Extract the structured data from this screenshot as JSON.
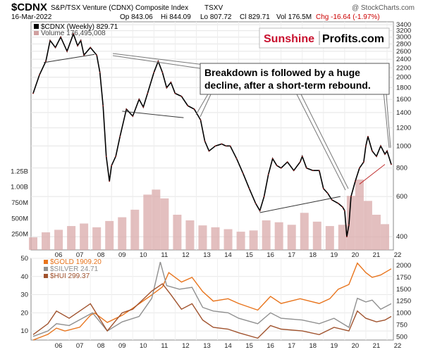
{
  "header": {
    "symbol": "$CDNX",
    "name": "S&P/TSX Venture (CDNX) Composite Index",
    "exchange": "TSXV",
    "watermark": "@ StockCharts.com",
    "date": "16-Mar-2022",
    "op": "Op 843.06",
    "hi": "Hi 844.09",
    "lo": "Lo 807.72",
    "cl": "Cl 829.71",
    "vol": "Vol 176.5M",
    "chg": "Chg -16.64 (-1.97%)",
    "chg_color": "#cc0000"
  },
  "brand": {
    "part1": "Sunshine",
    "part2": "Profits.com",
    "color1": "#c8102e"
  },
  "annotation": {
    "line1": "Breakdown is followed by a huge",
    "line2": "decline, after a short-term rebound."
  },
  "chart_data": [
    {
      "type": "line",
      "title": "$CDNX (Weekly) 829.71",
      "series": [
        {
          "name": "$CDNX (Weekly) 829.71",
          "color": "#000000",
          "x": [
            2005.3,
            2005.6,
            2005.9,
            2006.1,
            2006.35,
            2006.6,
            2006.9,
            2007.2,
            2007.4,
            2007.55,
            2007.7,
            2008.0,
            2008.3,
            2008.45,
            2008.6,
            2008.75,
            2008.9,
            2009.0,
            2009.2,
            2009.4,
            2009.7,
            2010.0,
            2010.3,
            2010.5,
            2010.7,
            2011.0,
            2011.2,
            2011.4,
            2011.6,
            2011.8,
            2012.0,
            2012.3,
            2012.6,
            2012.9,
            2013.2,
            2013.4,
            2013.6,
            2013.9,
            2014.2,
            2014.4,
            2014.6,
            2014.9,
            2015.2,
            2015.5,
            2015.8,
            2016.0,
            2016.2,
            2016.4,
            2016.6,
            2016.8,
            2017.0,
            2017.3,
            2017.6,
            2017.9,
            2018.0,
            2018.2,
            2018.5,
            2018.8,
            2019.0,
            2019.2,
            2019.4,
            2019.7,
            2019.9,
            2020.0,
            2020.1,
            2020.2,
            2020.3,
            2020.5,
            2020.7,
            2020.9,
            2021.0,
            2021.1,
            2021.3,
            2021.5,
            2021.7,
            2021.9,
            2022.0,
            2022.2
          ],
          "values": [
            1700,
            2050,
            2350,
            2900,
            2700,
            3000,
            2600,
            3100,
            2750,
            2900,
            2500,
            2700,
            2500,
            2100,
            1500,
            900,
            700,
            820,
            900,
            1100,
            1450,
            1350,
            1600,
            1480,
            1700,
            2100,
            2350,
            2100,
            1800,
            1900,
            1700,
            1650,
            1500,
            1450,
            1300,
            1050,
            950,
            1000,
            1020,
            1000,
            1000,
            880,
            760,
            650,
            560,
            520,
            600,
            750,
            880,
            820,
            800,
            850,
            780,
            850,
            900,
            800,
            780,
            780,
            650,
            620,
            580,
            560,
            540,
            520,
            400,
            450,
            600,
            700,
            800,
            850,
            1000,
            1100,
            950,
            900,
            1000,
            920,
            950,
            830
          ]
        }
      ],
      "ylim": [
        350,
        3500
      ],
      "yticks": [
        400,
        600,
        800,
        1000,
        1200,
        1400,
        1600,
        1800,
        2000,
        2200,
        2400,
        2600,
        2800,
        3000,
        3200,
        3400
      ],
      "xticks": [
        "06",
        "07",
        "08",
        "09",
        "10",
        "11",
        "12",
        "13",
        "14",
        "15",
        "16",
        "17",
        "18",
        "19",
        "20",
        "21",
        "22"
      ],
      "trendlines": [
        {
          "x1": 2005.8,
          "y1": 2320,
          "x2": 2008.2,
          "y2": 2520
        },
        {
          "x1": 2009.5,
          "y1": 1420,
          "x2": 2012.4,
          "y2": 1330
        },
        {
          "x1": 2016.0,
          "y1": 510,
          "x2": 2019.8,
          "y2": 600
        },
        {
          "x1": 2020.7,
          "y1": 680,
          "x2": 2021.9,
          "y2": 830
        }
      ]
    },
    {
      "type": "bar",
      "title": "Volume 176,495,008",
      "series": [
        {
          "name": "Volume 176,495,008",
          "x": [
            2005.3,
            2005.9,
            2006.5,
            2007.1,
            2007.7,
            2008.3,
            2008.9,
            2009.5,
            2010.1,
            2010.7,
            2011.1,
            2011.5,
            2012.1,
            2012.7,
            2013.3,
            2013.9,
            2014.5,
            2015.1,
            2015.7,
            2016.3,
            2016.9,
            2017.5,
            2018.1,
            2018.7,
            2019.3,
            2019.9,
            2020.3,
            2020.7,
            2021.1,
            2021.5,
            2021.9
          ],
          "values": [
            200,
            280,
            320,
            380,
            420,
            360,
            460,
            520,
            640,
            880,
            960,
            820,
            560,
            470,
            390,
            360,
            330,
            290,
            310,
            470,
            440,
            400,
            590,
            450,
            380,
            400,
            860,
            1120,
            780,
            560,
            410
          ]
        }
      ],
      "ylim": [
        0,
        1400
      ],
      "yticks": [
        250,
        500,
        750,
        1000,
        1250
      ],
      "ytick_labels": [
        "250M",
        "500M",
        "750M",
        "1.00B",
        "1.25B"
      ]
    },
    {
      "type": "line",
      "series": [
        {
          "name": "$GOLD 1909.20",
          "color": "#e8741c",
          "axis": "right",
          "x": [
            2005.3,
            2006.0,
            2006.4,
            2006.8,
            2007.5,
            2008.0,
            2008.2,
            2008.8,
            2009.5,
            2010.0,
            2010.8,
            2011.4,
            2011.7,
            2012.3,
            2012.8,
            2013.3,
            2013.8,
            2014.5,
            2015.0,
            2015.9,
            2016.5,
            2017.0,
            2017.9,
            2018.8,
            2019.3,
            2019.7,
            2020.2,
            2020.6,
            2021.0,
            2021.3,
            2021.7,
            2022.2
          ],
          "values": [
            430,
            550,
            680,
            620,
            700,
            950,
            1000,
            800,
            950,
            1100,
            1350,
            1550,
            1850,
            1650,
            1750,
            1450,
            1250,
            1300,
            1200,
            1060,
            1350,
            1200,
            1300,
            1200,
            1300,
            1500,
            1600,
            2050,
            1850,
            1750,
            1800,
            1930
          ]
        },
        {
          "name": "$SILVER 24.71",
          "color": "#909090",
          "axis": "left",
          "x": [
            2005.3,
            2006.0,
            2006.4,
            2007.0,
            2008.1,
            2008.8,
            2009.5,
            2010.3,
            2010.9,
            2011.3,
            2011.6,
            2012.2,
            2012.8,
            2013.3,
            2013.8,
            2014.5,
            2015.0,
            2015.9,
            2016.5,
            2017.0,
            2018.0,
            2018.8,
            2019.5,
            2020.2,
            2020.6,
            2021.0,
            2021.3,
            2021.7,
            2022.2
          ],
          "values": [
            7,
            10,
            14,
            13,
            20,
            10,
            15,
            18,
            28,
            48,
            35,
            33,
            34,
            23,
            21,
            20,
            17,
            14,
            20,
            17,
            16,
            14,
            17,
            12,
            28,
            26,
            27,
            22,
            25
          ]
        },
        {
          "name": "$HUI 299.37",
          "color": "#a0522d",
          "axis": "left",
          "x": [
            2005.3,
            2006.0,
            2006.4,
            2007.0,
            2008.0,
            2008.8,
            2009.5,
            2010.0,
            2010.9,
            2011.4,
            2011.8,
            2012.3,
            2012.8,
            2013.3,
            2013.8,
            2014.5,
            2015.0,
            2015.9,
            2016.5,
            2017.0,
            2018.0,
            2018.8,
            2019.5,
            2020.2,
            2020.6,
            2021.0,
            2021.5,
            2021.9,
            2022.2
          ],
          "values": [
            8,
            14,
            21,
            17,
            25,
            10,
            20,
            22,
            32,
            36,
            30,
            22,
            25,
            16,
            12,
            11,
            9,
            6,
            13,
            11,
            10,
            8,
            12,
            10,
            21,
            17,
            15,
            16,
            18
          ]
        }
      ],
      "ylim_left": [
        5,
        50
      ],
      "yticks_left": [
        10,
        20,
        30,
        40,
        50
      ],
      "ylim_right": [
        430,
        2150
      ],
      "yticks_right": [
        500,
        750,
        1000,
        1250,
        1500,
        1750,
        2000
      ],
      "xticks": [
        "06",
        "07",
        "08",
        "09",
        "10",
        "11",
        "12",
        "13",
        "14",
        "15",
        "16",
        "17",
        "18",
        "19",
        "20",
        "21",
        "22"
      ]
    }
  ]
}
